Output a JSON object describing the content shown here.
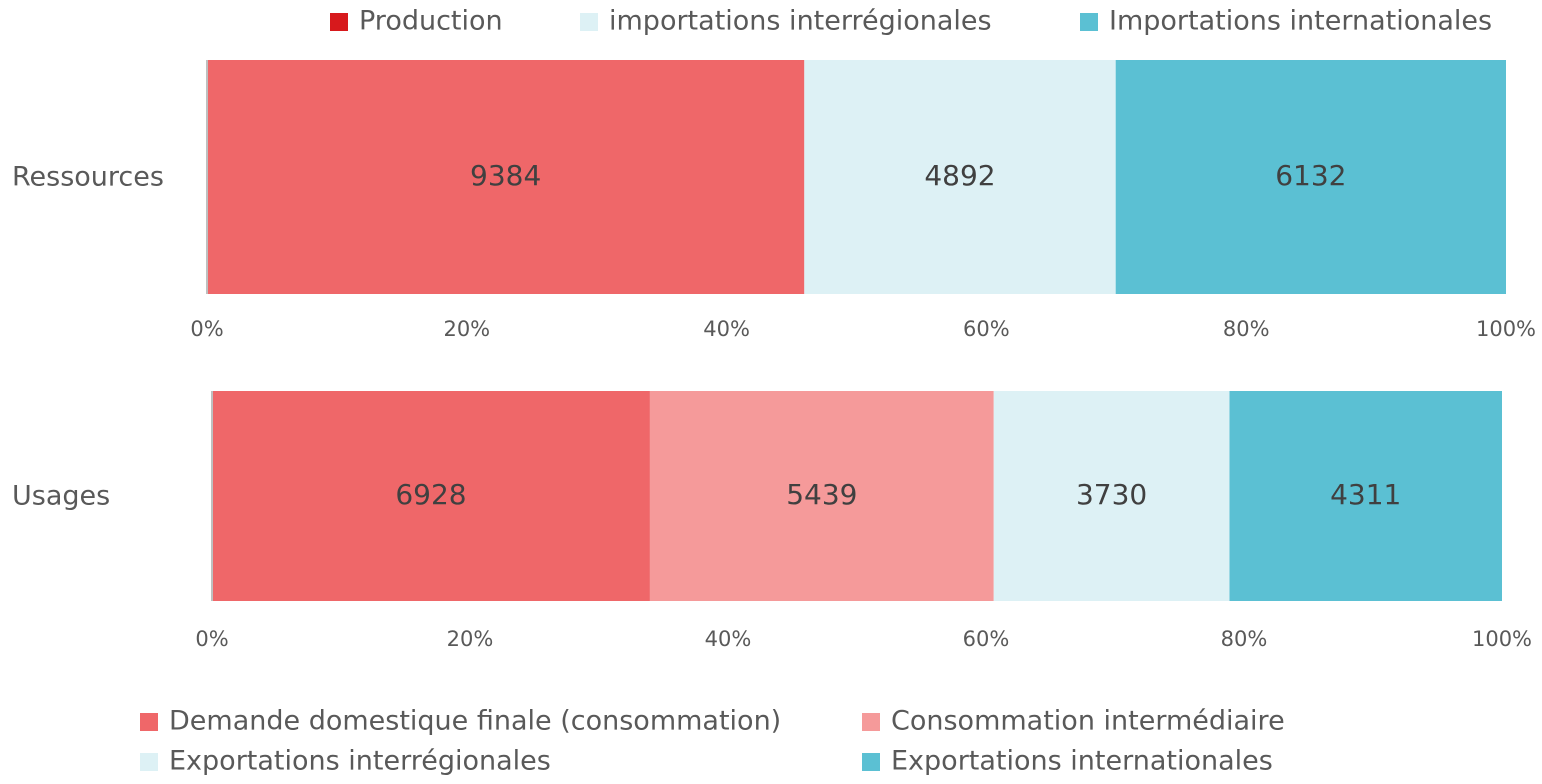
{
  "chart_data": [
    {
      "type": "bar",
      "orientation": "horizontal",
      "stacked": "percent",
      "categories": [
        "Ressources"
      ],
      "series": [
        {
          "name": "Production",
          "color": "#ef6769",
          "legend_color": "#d7191c",
          "values": [
            9384
          ]
        },
        {
          "name": "importations interrégionales",
          "color": "#ddf1f5",
          "values": [
            4892
          ]
        },
        {
          "name": "Importations internationales",
          "color": "#5bc0d3",
          "values": [
            6132
          ]
        }
      ],
      "xlim": [
        0,
        100
      ],
      "xticks": [
        {
          "value": 0,
          "label": "0%"
        },
        {
          "value": 20,
          "label": "20%"
        },
        {
          "value": 40,
          "label": "40%"
        },
        {
          "value": 60,
          "label": "60%"
        },
        {
          "value": 80,
          "label": "80%"
        },
        {
          "value": 100,
          "label": "100%"
        }
      ],
      "legend": "top"
    },
    {
      "type": "bar",
      "orientation": "horizontal",
      "stacked": "percent",
      "categories": [
        "Usages"
      ],
      "series": [
        {
          "name": "Demande domestique finale (consommation)",
          "color": "#ef6769",
          "values": [
            6928
          ]
        },
        {
          "name": "Consommation intermédiaire",
          "color": "#f59a9a",
          "values": [
            5439
          ]
        },
        {
          "name": "Exportations interrégionales",
          "color": "#ddf1f5",
          "values": [
            3730
          ]
        },
        {
          "name": "Exportations internationales",
          "color": "#5bc0d3",
          "values": [
            4311
          ]
        }
      ],
      "xlim": [
        0,
        100
      ],
      "xticks": [
        {
          "value": 0,
          "label": "0%"
        },
        {
          "value": 20,
          "label": "20%"
        },
        {
          "value": 40,
          "label": "40%"
        },
        {
          "value": 60,
          "label": "60%"
        },
        {
          "value": 80,
          "label": "80%"
        },
        {
          "value": 100,
          "label": "100%"
        }
      ],
      "legend": "bottom"
    }
  ]
}
